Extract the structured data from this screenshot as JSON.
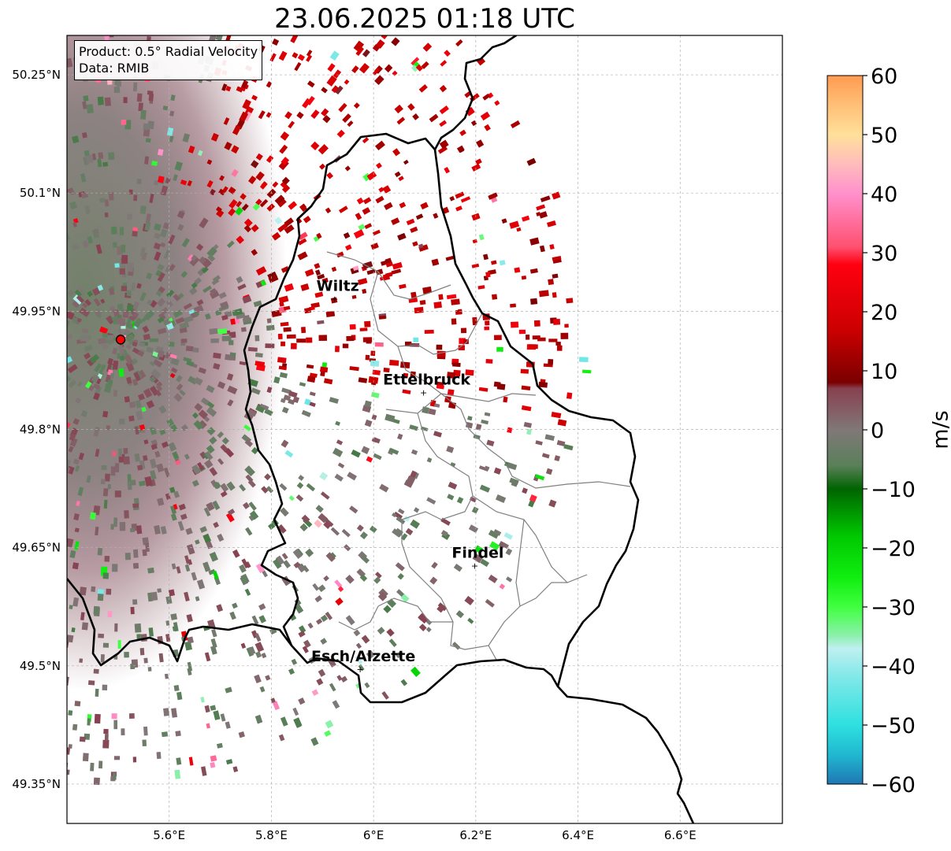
{
  "title": "23.06.2025 01:18 UTC",
  "info_box": {
    "product": "Product: 0.5° Radial Velocity",
    "source": "Data: RMIB"
  },
  "map": {
    "lon_range": [
      5.4,
      6.8
    ],
    "lat_range": [
      49.3,
      50.3
    ],
    "lon_ticks": [
      {
        "value": 5.6,
        "label": "5.6°E"
      },
      {
        "value": 5.8,
        "label": "5.8°E"
      },
      {
        "value": 6.0,
        "label": "6°E"
      },
      {
        "value": 6.2,
        "label": "6.2°E"
      },
      {
        "value": 6.4,
        "label": "6.4°E"
      },
      {
        "value": 6.6,
        "label": "6.6°E"
      }
    ],
    "lat_ticks": [
      {
        "value": 50.25,
        "label": "50.25°N"
      },
      {
        "value": 50.1,
        "label": "50.1°N"
      },
      {
        "value": 49.95,
        "label": "49.95°N"
      },
      {
        "value": 49.8,
        "label": "49.8°N"
      },
      {
        "value": 49.65,
        "label": "49.65°N"
      },
      {
        "value": 49.5,
        "label": "49.5°N"
      },
      {
        "value": 49.35,
        "label": "49.35°N"
      }
    ],
    "cities": [
      {
        "name": "Wiltz",
        "lon": 5.93,
        "lat": 49.966
      },
      {
        "name": "Ettelbruck",
        "lon": 6.104,
        "lat": 49.847
      },
      {
        "name": "Findel",
        "lon": 6.204,
        "lat": 49.627
      },
      {
        "name": "Esch/Alzette",
        "lon": 5.98,
        "lat": 49.496
      }
    ],
    "radar_site": {
      "lon": 5.505,
      "lat": 49.914
    },
    "colors": {
      "border": "#000000",
      "admin": "#808080",
      "grid": "#b0b0b0",
      "radar_marker": "#ff0000"
    }
  },
  "colorbar": {
    "label": "m/s",
    "min": -60,
    "max": 60,
    "ticks": [
      {
        "value": 60,
        "label": "60"
      },
      {
        "value": 50,
        "label": "50"
      },
      {
        "value": 40,
        "label": "40"
      },
      {
        "value": 30,
        "label": "30"
      },
      {
        "value": 20,
        "label": "20"
      },
      {
        "value": 10,
        "label": "10"
      },
      {
        "value": 0,
        "label": "0"
      },
      {
        "value": -10,
        "label": "−10"
      },
      {
        "value": -20,
        "label": "−20"
      },
      {
        "value": -30,
        "label": "−30"
      },
      {
        "value": -40,
        "label": "−40"
      },
      {
        "value": -50,
        "label": "−50"
      },
      {
        "value": -60,
        "label": "−60"
      }
    ],
    "stops": [
      {
        "value": -60,
        "color": "#1f77b4"
      },
      {
        "value": -55,
        "color": "#20b8d0"
      },
      {
        "value": -50,
        "color": "#2ee0e0"
      },
      {
        "value": -42,
        "color": "#7fe8e8"
      },
      {
        "value": -37,
        "color": "#bff0f0"
      },
      {
        "value": -35,
        "color": "#8ef0b0"
      },
      {
        "value": -30,
        "color": "#40ff40"
      },
      {
        "value": -25,
        "color": "#10ee10"
      },
      {
        "value": -18,
        "color": "#00c800"
      },
      {
        "value": -10,
        "color": "#006400"
      },
      {
        "value": -6,
        "color": "#5a805a"
      },
      {
        "value": 0,
        "color": "#807878"
      },
      {
        "value": 7,
        "color": "#884050"
      },
      {
        "value": 8,
        "color": "#7a0000"
      },
      {
        "value": 17,
        "color": "#cc0000"
      },
      {
        "value": 28,
        "color": "#ff0010"
      },
      {
        "value": 31,
        "color": "#ff5070"
      },
      {
        "value": 40,
        "color": "#ff90cc"
      },
      {
        "value": 45,
        "color": "#ffbcbc"
      },
      {
        "value": 50,
        "color": "#ffe09a"
      },
      {
        "value": 56,
        "color": "#ffb870"
      },
      {
        "value": 60,
        "color": "#ff9a50"
      }
    ]
  }
}
